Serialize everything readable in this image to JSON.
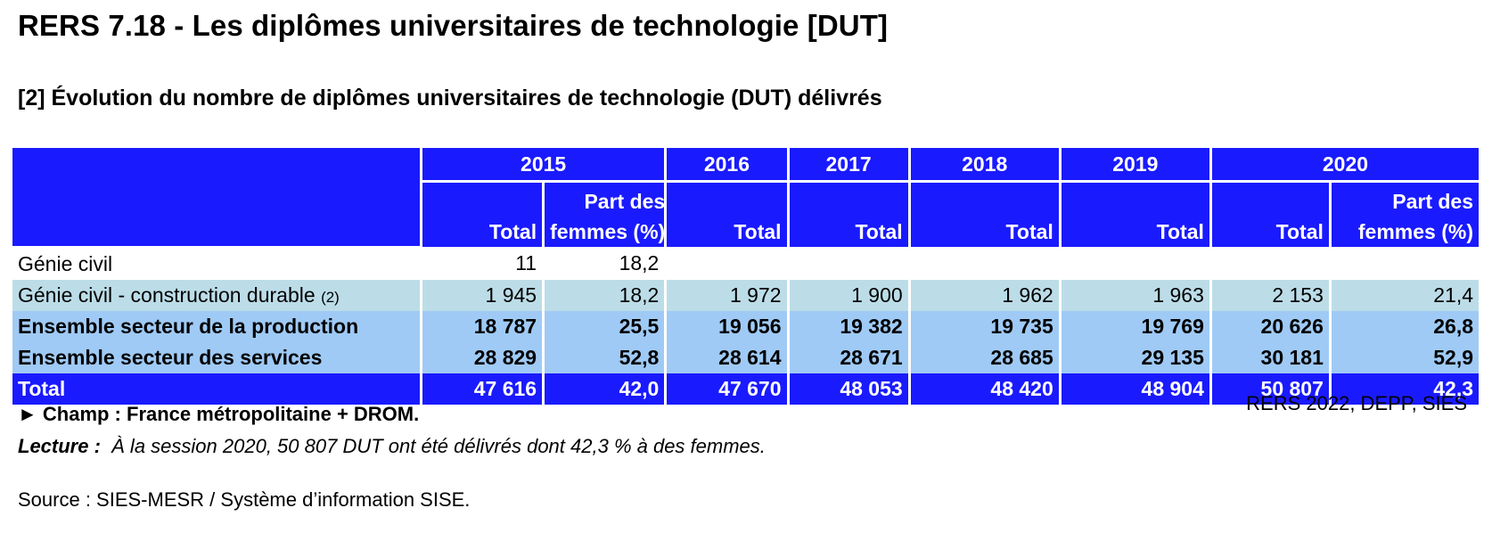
{
  "title": "RERS 7.18 - Les diplômes universitaires de technologie [DUT]",
  "subtitle": "[2] Évolution du nombre de diplômes universitaires de technologie (DUT) délivrés",
  "table": {
    "years": [
      "2015",
      "2016",
      "2017",
      "2018",
      "2019",
      "2020"
    ],
    "sub_total": "Total",
    "sub_part_line1": "Part des",
    "sub_part_line2": "femmes (%)",
    "rows": [
      {
        "label": "Génie civil",
        "note": "",
        "values": [
          "11",
          "18,2",
          "",
          "",
          "",
          "",
          "",
          ""
        ]
      },
      {
        "label": "Génie civil - construction durable ",
        "note": "(2)",
        "values": [
          "1 945",
          "18,2",
          "1 972",
          "1 900",
          "1 962",
          "1 963",
          "2 153",
          "21,4"
        ]
      },
      {
        "label": "Ensemble secteur de la production",
        "note": "",
        "values": [
          "18 787",
          "25,5",
          "19 056",
          "19 382",
          "19 735",
          "19 769",
          "20 626",
          "26,8"
        ]
      },
      {
        "label": "Ensemble secteur des services",
        "note": "",
        "values": [
          "28 829",
          "52,8",
          "28 614",
          "28 671",
          "28 685",
          "29 135",
          "30 181",
          "52,9"
        ]
      },
      {
        "label": "Total",
        "note": "",
        "values": [
          "47 616",
          "42,0",
          "47 670",
          "48 053",
          "48 420",
          "48 904",
          "50 807",
          "42,3"
        ]
      }
    ]
  },
  "footer": {
    "champ": "► Champ : France métropolitaine + DROM.",
    "credit": "RERS 2022, DEPP, SIES",
    "lecture_label": "Lecture :",
    "lecture_text": "  À la session 2020, 50 807 DUT ont été délivrés dont 42,3 % à des femmes.",
    "source": "Source : SIES-MESR / Système d’information SISE."
  },
  "colors": {
    "header_blue": "#1a1aff",
    "row_light": "#bcdde8",
    "row_blue": "#9fcaf5"
  }
}
